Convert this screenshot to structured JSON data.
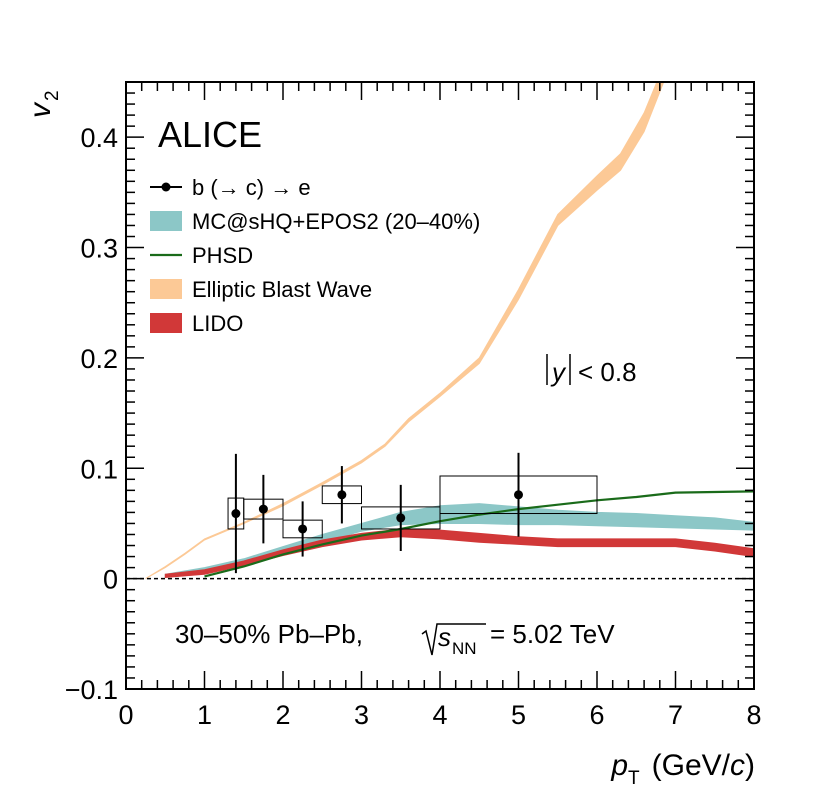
{
  "chart_data": {
    "type": "line",
    "experiment": "ALICE",
    "collision": "30–50% Pb–Pb,",
    "energy_label": "= 5.02 TeV",
    "energy_symbol": "s",
    "energy_subscript": "NN",
    "rapidity_label": "< 0.8",
    "rapidity_symbol": "y",
    "xlabel": "p",
    "xlabel_subscript": "T",
    "xlabel_unit": "(GeV/",
    "xlabel_unit_italic": "c",
    "xlabel_unit_end": ")",
    "ylabel": "v",
    "ylabel_subscript": "2",
    "xlim": [
      0,
      8
    ],
    "ylim": [
      -0.1,
      0.45
    ],
    "xticks": [
      0,
      1,
      2,
      3,
      4,
      5,
      6,
      7,
      8
    ],
    "yticks": [
      -0.1,
      0,
      0.1,
      0.2,
      0.3,
      0.4
    ],
    "ytick_labels": [
      "−0.1",
      "0",
      "0.1",
      "0.2",
      "0.3",
      "0.4"
    ],
    "legend": [
      {
        "label": "b (→ c) → e",
        "style": "marker",
        "color": "#000000"
      },
      {
        "label": "MC@sHQ+EPOS2 (20–40%)",
        "style": "band",
        "color": "#8cc7c7"
      },
      {
        "label": "PHSD",
        "style": "line",
        "color": "#1a6b1a"
      },
      {
        "label": "Elliptic Blast Wave",
        "style": "band",
        "color": "#fcc996"
      },
      {
        "label": "LIDO",
        "style": "band",
        "color": "#d13838"
      }
    ],
    "data_series": {
      "name": "b (→ c) → e",
      "points": [
        {
          "x": 1.4,
          "y": 0.059,
          "stat_err": 0.054,
          "sys_err": 0.014,
          "bin_lo": 1.3,
          "bin_hi": 1.5
        },
        {
          "x": 1.75,
          "y": 0.063,
          "stat_err": 0.031,
          "sys_err": 0.009,
          "bin_lo": 1.5,
          "bin_hi": 2.0
        },
        {
          "x": 2.25,
          "y": 0.045,
          "stat_err": 0.025,
          "sys_err": 0.008,
          "bin_lo": 2.0,
          "bin_hi": 2.5
        },
        {
          "x": 2.75,
          "y": 0.076,
          "stat_err": 0.026,
          "sys_err": 0.008,
          "bin_lo": 2.5,
          "bin_hi": 3.0
        },
        {
          "x": 3.5,
          "y": 0.055,
          "stat_err": 0.03,
          "sys_err": 0.01,
          "bin_lo": 3.0,
          "bin_hi": 4.0
        },
        {
          "x": 5.0,
          "y": 0.076,
          "stat_err": 0.038,
          "sys_err": 0.017,
          "bin_lo": 4.0,
          "bin_hi": 6.0
        }
      ]
    },
    "model_bands": [
      {
        "name": "Elliptic Blast Wave",
        "color": "#fcc996",
        "x": [
          0.25,
          0.5,
          0.75,
          1.0,
          1.5,
          2.0,
          2.5,
          3.0,
          3.3,
          3.6,
          4.0,
          4.5,
          5.0,
          5.5,
          6.0,
          6.3,
          6.6,
          6.85
        ],
        "lo": [
          0.0,
          0.01,
          0.022,
          0.035,
          0.05,
          0.066,
          0.085,
          0.105,
          0.12,
          0.142,
          0.165,
          0.195,
          0.253,
          0.32,
          0.352,
          0.37,
          0.405,
          0.45
        ],
        "hi": [
          0.0,
          0.011,
          0.023,
          0.036,
          0.051,
          0.068,
          0.087,
          0.107,
          0.122,
          0.145,
          0.168,
          0.2,
          0.262,
          0.33,
          0.365,
          0.385,
          0.422,
          0.465
        ]
      },
      {
        "name": "MC@sHQ+EPOS2 (20–40%)",
        "color": "#8cc7c7",
        "x": [
          0.5,
          1.0,
          1.5,
          2.0,
          2.5,
          3.0,
          3.5,
          4.0,
          4.5,
          5.0,
          5.5,
          6.0,
          6.5,
          7.0,
          7.5,
          8.0
        ],
        "lo": [
          0.001,
          0.006,
          0.013,
          0.023,
          0.033,
          0.043,
          0.049,
          0.05,
          0.05,
          0.049,
          0.049,
          0.048,
          0.047,
          0.046,
          0.045,
          0.044
        ],
        "hi": [
          0.004,
          0.01,
          0.018,
          0.029,
          0.04,
          0.05,
          0.06,
          0.066,
          0.068,
          0.065,
          0.062,
          0.06,
          0.059,
          0.057,
          0.055,
          0.051
        ]
      },
      {
        "name": "LIDO",
        "color": "#d13838",
        "x": [
          0.5,
          1.0,
          1.5,
          2.0,
          2.5,
          3.0,
          3.5,
          4.0,
          4.5,
          5.0,
          5.5,
          6.0,
          6.5,
          7.0,
          7.5,
          8.0
        ],
        "lo": [
          0.001,
          0.004,
          0.012,
          0.021,
          0.029,
          0.035,
          0.038,
          0.036,
          0.033,
          0.031,
          0.029,
          0.029,
          0.029,
          0.029,
          0.025,
          0.02
        ],
        "hi": [
          0.004,
          0.008,
          0.016,
          0.026,
          0.035,
          0.041,
          0.045,
          0.044,
          0.041,
          0.038,
          0.036,
          0.036,
          0.036,
          0.036,
          0.032,
          0.027
        ]
      }
    ],
    "model_lines": [
      {
        "name": "PHSD",
        "color": "#1a6b1a",
        "x": [
          1.0,
          1.5,
          2.0,
          2.5,
          3.0,
          3.5,
          4.0,
          4.5,
          5.0,
          5.5,
          6.0,
          6.5,
          7.0,
          7.5,
          8.0
        ],
        "y": [
          0.002,
          0.011,
          0.022,
          0.031,
          0.039,
          0.045,
          0.052,
          0.058,
          0.063,
          0.067,
          0.071,
          0.074,
          0.078,
          0.0785,
          0.079
        ]
      }
    ]
  }
}
